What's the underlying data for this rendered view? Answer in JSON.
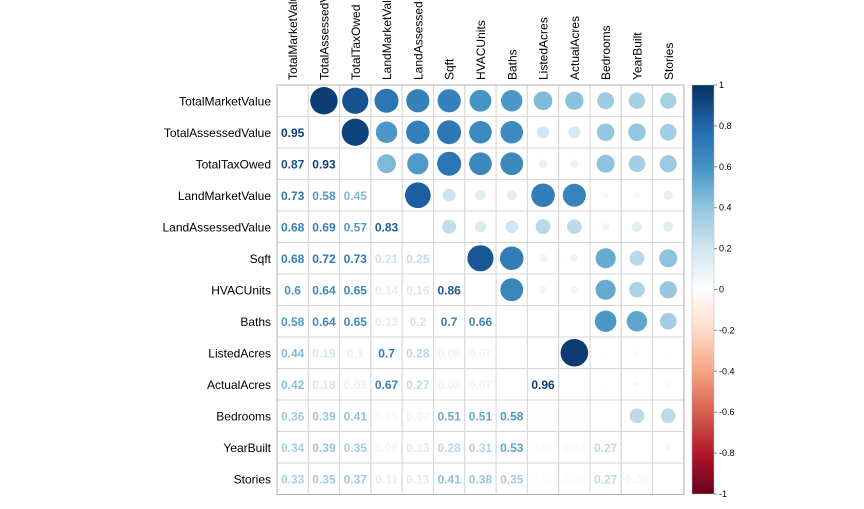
{
  "chart_data": {
    "type": "heatmap",
    "variables": [
      "TotalMarketValue",
      "TotalAssessedValue",
      "TotalTaxOwed",
      "LandMarketValue",
      "LandAssessedValue",
      "Sqft",
      "HVACUnits",
      "Baths",
      "ListedAcres",
      "ActualAcres",
      "Bedrooms",
      "YearBuilt",
      "Stories"
    ],
    "column_labels": [
      "TotalMarketValu",
      "TotalAssessedV",
      "TotalTaxOwed",
      "LandMarketValu",
      "LandAssessed",
      "Sqft",
      "HVACUnits",
      "Baths",
      "ListedAcres",
      "ActualAcres",
      "Bedrooms",
      "YearBuilt",
      "Stories"
    ],
    "matrix": [
      [
        1,
        0.95,
        0.87,
        0.73,
        0.68,
        0.68,
        0.6,
        0.58,
        0.44,
        0.42,
        0.36,
        0.34,
        0.33
      ],
      [
        0.95,
        1,
        0.93,
        0.58,
        0.69,
        0.72,
        0.64,
        0.64,
        0.19,
        0.18,
        0.39,
        0.39,
        0.35
      ],
      [
        0.87,
        0.93,
        1,
        0.45,
        0.57,
        0.73,
        0.65,
        0.65,
        0.1,
        0.09,
        0.41,
        0.35,
        0.37
      ],
      [
        0.73,
        0.58,
        0.45,
        1,
        0.83,
        0.21,
        0.14,
        0.13,
        0.7,
        0.67,
        0.05,
        0.06,
        0.11
      ],
      [
        0.68,
        0.69,
        0.57,
        0.83,
        1,
        0.25,
        0.16,
        0.2,
        0.28,
        0.27,
        0.07,
        0.13,
        0.13
      ],
      [
        0.68,
        0.72,
        0.73,
        0.21,
        0.25,
        1,
        0.86,
        0.7,
        0.08,
        0.08,
        0.51,
        0.28,
        0.41
      ],
      [
        0.6,
        0.64,
        0.65,
        0.14,
        0.16,
        0.86,
        1,
        0.66,
        0.07,
        0.07,
        0.51,
        0.31,
        0.38
      ],
      [
        0.58,
        0.64,
        0.65,
        0.13,
        0.2,
        0.7,
        0.66,
        1,
        0.0,
        0.0,
        0.58,
        0.53,
        0.35
      ],
      [
        0.44,
        0.19,
        0.1,
        0.7,
        0.28,
        0.08,
        0.07,
        0.0,
        1,
        0.96,
        0.02,
        0.03,
        0.02
      ],
      [
        0.42,
        0.18,
        0.09,
        0.67,
        0.27,
        0.08,
        0.07,
        0.0,
        0.96,
        1,
        0.02,
        0.04,
        0.03
      ],
      [
        0.36,
        0.39,
        0.41,
        0.05,
        0.07,
        0.51,
        0.51,
        0.58,
        0.02,
        0.02,
        1,
        0.27,
        0.27
      ],
      [
        0.34,
        0.39,
        0.35,
        0.06,
        0.13,
        0.28,
        0.31,
        0.53,
        0.03,
        0.04,
        0.27,
        1,
        0.06
      ],
      [
        0.33,
        0.35,
        0.37,
        0.11,
        0.13,
        0.41,
        0.38,
        0.35,
        0.02,
        0.03,
        0.27,
        0.06,
        1
      ]
    ],
    "lower_triangle": "numbers",
    "upper_triangle": "circles",
    "diagonal": "blank",
    "colorbar_ticks": [
      "1",
      "0.8",
      "0.6",
      "0.4",
      "0.2",
      "0",
      "-0.2",
      "-0.4",
      "-0.6",
      "-0.8",
      "-1"
    ],
    "colorbar_range": [
      -1,
      1
    ],
    "colormap": [
      "#67001F",
      "#B2182B",
      "#D6604D",
      "#F4A582",
      "#FDDBC7",
      "#FFFFFF",
      "#D1E5F0",
      "#92C5DE",
      "#4393C3",
      "#2166AC",
      "#053061"
    ],
    "legend_position": "right"
  }
}
